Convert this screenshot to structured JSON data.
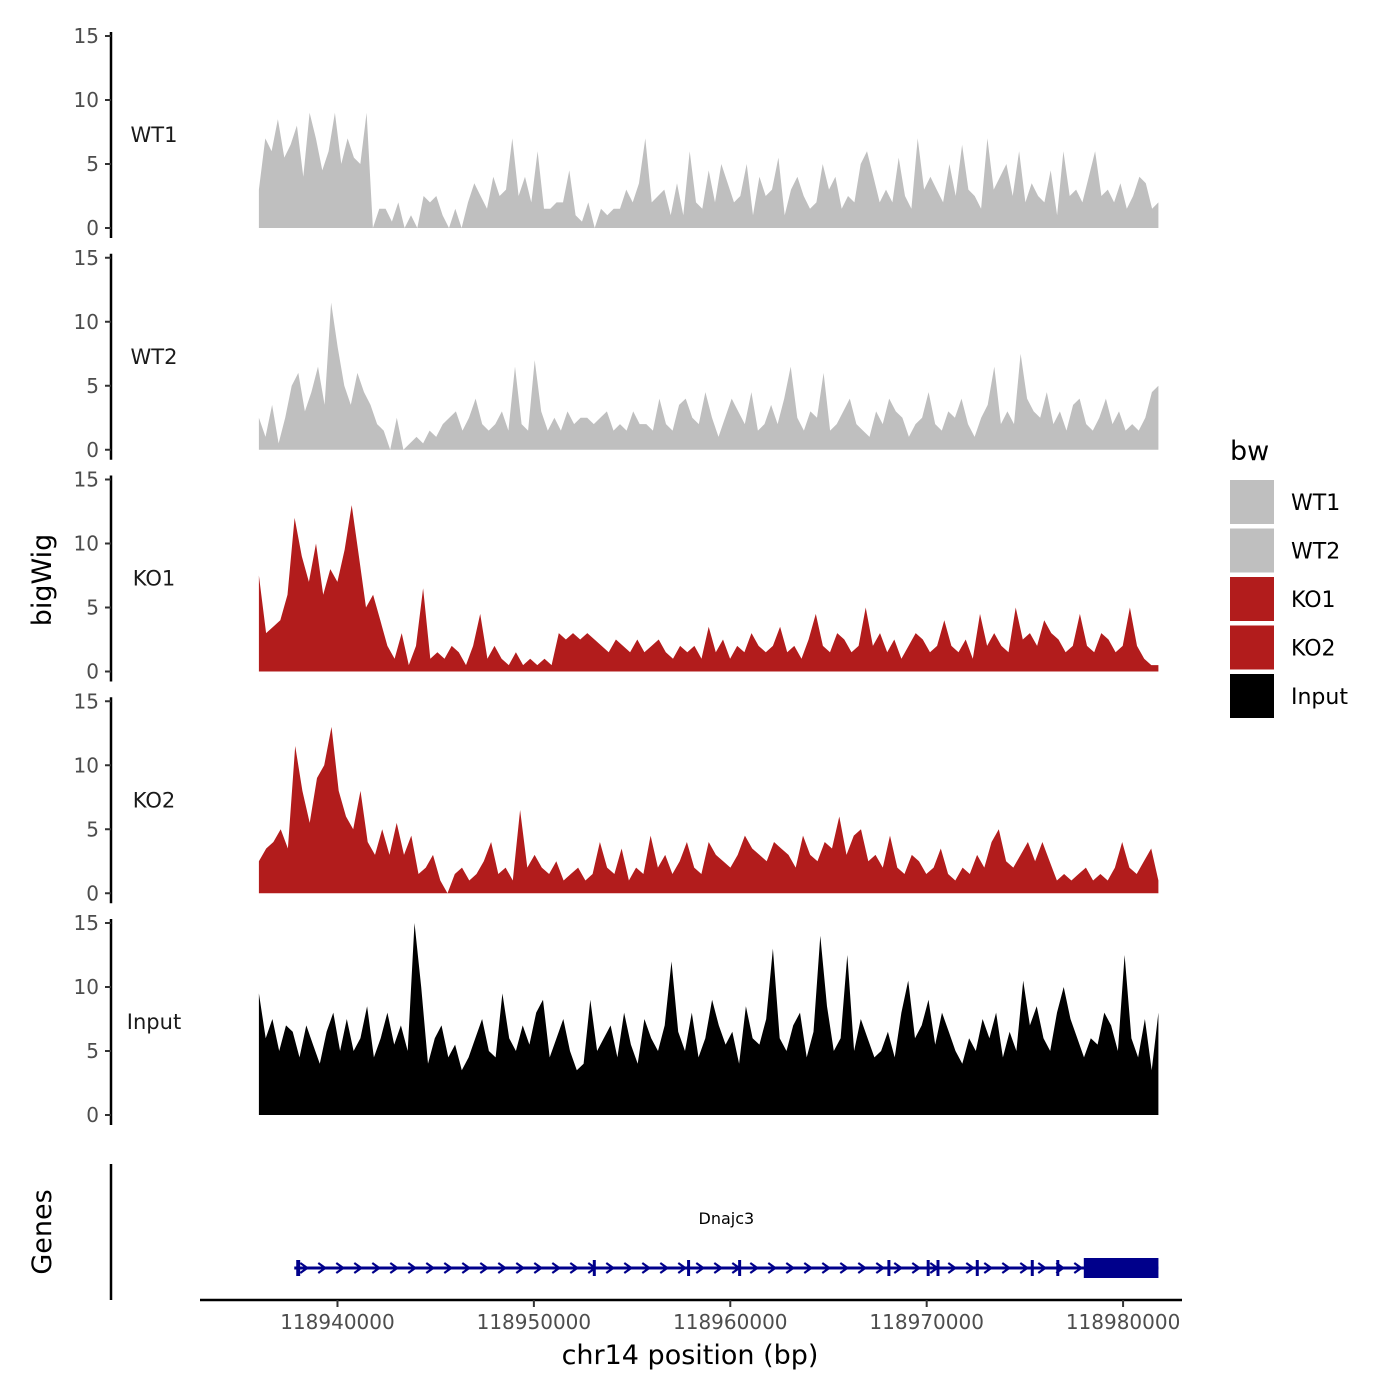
{
  "chart_data": {
    "type": "area",
    "y_axis_title": "bigWig",
    "gene_axis_title": "Genes",
    "xlabel": "chr14 position (bp)",
    "x_ticks": [
      118940000,
      118950000,
      118960000,
      118970000,
      118980000
    ],
    "x_tick_labels": [
      "118940000",
      "118950000",
      "118960000",
      "118970000",
      "118980000"
    ],
    "xlim": [
      118933000,
      118983000
    ],
    "data_range": [
      118936000,
      118981800
    ],
    "ylim": [
      0,
      15
    ],
    "y_ticks": [
      0,
      5,
      10,
      15
    ],
    "y_tick_labels": [
      "0",
      "5",
      "10",
      "15"
    ],
    "legend": {
      "title": "bw",
      "position": "right",
      "entries": [
        {
          "label": "WT1",
          "color": "#bfbfbf"
        },
        {
          "label": "WT2",
          "color": "#bfbfbf"
        },
        {
          "label": "KO1",
          "color": "#b21c1c"
        },
        {
          "label": "KO2",
          "color": "#b21c1c"
        },
        {
          "label": "Input",
          "color": "#000000"
        }
      ]
    },
    "series": [
      {
        "name": "WT1",
        "color": "#bfbfbf",
        "values": [
          3.0,
          7.0,
          6.0,
          8.5,
          5.5,
          6.5,
          8.0,
          4.0,
          9.0,
          7.0,
          4.5,
          6.0,
          9.0,
          5.0,
          7.0,
          5.5,
          5.0,
          9.0,
          0.0,
          1.5,
          1.5,
          0.5,
          2.0,
          0.0,
          1.0,
          0.0,
          2.5,
          2.0,
          2.5,
          1.0,
          0.0,
          1.5,
          0.0,
          2.0,
          3.5,
          2.5,
          1.5,
          4.0,
          2.5,
          3.0,
          7.0,
          2.5,
          4.0,
          2.0,
          6.0,
          1.5,
          1.5,
          2.0,
          2.0,
          4.5,
          1.0,
          0.5,
          2.0,
          0.0,
          1.5,
          1.0,
          1.5,
          1.5,
          3.0,
          2.0,
          3.5,
          7.0,
          2.0,
          2.5,
          3.0,
          1.0,
          3.5,
          1.0,
          6.0,
          2.0,
          1.5,
          4.5,
          2.0,
          5.0,
          3.5,
          2.0,
          2.5,
          5.0,
          1.0,
          4.0,
          2.5,
          3.0,
          5.5,
          1.0,
          3.0,
          4.0,
          2.5,
          1.5,
          2.0,
          5.0,
          3.0,
          4.0,
          1.5,
          2.5,
          2.0,
          5.0,
          6.0,
          4.0,
          2.0,
          3.0,
          2.0,
          5.5,
          2.5,
          1.5,
          7.0,
          3.0,
          4.0,
          3.0,
          2.0,
          5.0,
          2.5,
          6.5,
          3.0,
          2.5,
          1.5,
          7.0,
          3.0,
          4.0,
          5.0,
          2.5,
          6.0,
          2.0,
          3.5,
          2.5,
          2.0,
          4.5,
          1.0,
          6.0,
          2.5,
          3.0,
          2.0,
          4.0,
          6.0,
          2.5,
          3.0,
          2.0,
          3.5,
          1.5,
          2.5,
          4.0,
          3.5,
          1.5,
          2.0
        ]
      },
      {
        "name": "WT2",
        "color": "#bfbfbf",
        "values": [
          2.5,
          1.0,
          3.5,
          0.5,
          2.5,
          5.0,
          6.0,
          3.0,
          4.5,
          6.5,
          3.5,
          11.5,
          8.0,
          5.0,
          3.5,
          6.0,
          4.5,
          3.5,
          2.0,
          1.5,
          0.0,
          2.5,
          0.0,
          0.5,
          1.0,
          0.5,
          1.5,
          1.0,
          2.0,
          2.5,
          3.0,
          1.5,
          2.5,
          4.0,
          2.0,
          1.5,
          2.0,
          3.0,
          1.5,
          6.5,
          2.0,
          1.5,
          7.0,
          3.0,
          1.5,
          2.5,
          1.5,
          3.0,
          2.0,
          2.5,
          2.5,
          2.0,
          2.5,
          3.0,
          1.5,
          2.0,
          1.5,
          3.0,
          2.0,
          2.0,
          1.5,
          4.0,
          2.0,
          1.5,
          3.5,
          4.0,
          2.5,
          2.0,
          4.5,
          2.5,
          1.0,
          2.5,
          4.0,
          3.0,
          2.0,
          4.5,
          1.5,
          2.0,
          3.5,
          2.0,
          4.0,
          6.5,
          2.5,
          1.5,
          3.0,
          2.5,
          6.0,
          1.5,
          2.0,
          3.0,
          4.0,
          2.0,
          1.5,
          1.0,
          3.0,
          2.0,
          4.0,
          3.0,
          2.5,
          1.0,
          2.0,
          2.5,
          4.5,
          2.0,
          1.5,
          3.0,
          2.5,
          4.0,
          2.0,
          1.0,
          2.5,
          3.5,
          6.5,
          2.0,
          3.0,
          2.0,
          7.5,
          4.0,
          3.0,
          2.5,
          4.5,
          2.0,
          3.0,
          1.5,
          3.5,
          4.0,
          2.0,
          1.5,
          2.5,
          4.0,
          2.0,
          3.0,
          1.5,
          2.0,
          1.5,
          2.5,
          4.5,
          5.0
        ]
      },
      {
        "name": "KO1",
        "color": "#b21c1c",
        "values": [
          7.5,
          3.0,
          3.5,
          4.0,
          6.0,
          12.0,
          9.0,
          7.0,
          10.0,
          6.0,
          8.0,
          7.0,
          9.5,
          13.0,
          9.0,
          5.0,
          6.0,
          4.0,
          2.0,
          1.0,
          3.0,
          0.5,
          2.0,
          6.5,
          1.0,
          1.5,
          1.0,
          2.0,
          1.5,
          0.5,
          2.0,
          4.5,
          1.0,
          2.0,
          1.0,
          0.5,
          1.5,
          0.5,
          1.0,
          0.5,
          1.0,
          0.5,
          3.0,
          2.5,
          3.0,
          2.5,
          3.0,
          2.5,
          2.0,
          1.5,
          2.5,
          2.0,
          1.5,
          2.5,
          1.5,
          2.0,
          2.5,
          1.5,
          1.0,
          2.0,
          1.5,
          2.0,
          1.0,
          3.5,
          1.5,
          2.5,
          1.0,
          2.0,
          1.5,
          3.0,
          2.0,
          1.5,
          2.0,
          3.5,
          1.5,
          2.0,
          1.0,
          2.5,
          4.5,
          2.0,
          1.5,
          3.0,
          2.5,
          1.5,
          2.0,
          5.0,
          2.0,
          3.0,
          1.5,
          2.5,
          1.0,
          2.0,
          3.0,
          2.5,
          1.5,
          2.0,
          4.0,
          2.0,
          1.5,
          2.5,
          1.0,
          4.5,
          2.0,
          3.0,
          2.0,
          1.5,
          5.0,
          2.5,
          3.0,
          2.0,
          4.0,
          3.0,
          2.5,
          1.5,
          2.0,
          4.5,
          2.0,
          1.5,
          3.0,
          2.5,
          1.5,
          2.0,
          5.0,
          2.0,
          1.0,
          0.5,
          0.5
        ]
      },
      {
        "name": "KO2",
        "color": "#b21c1c",
        "values": [
          2.5,
          3.5,
          4.0,
          5.0,
          3.5,
          11.5,
          8.0,
          5.5,
          9.0,
          10.0,
          13.0,
          8.0,
          6.0,
          5.0,
          8.0,
          4.0,
          3.0,
          5.0,
          3.0,
          5.5,
          3.0,
          4.5,
          1.5,
          2.0,
          3.0,
          1.0,
          0.0,
          1.5,
          2.0,
          1.0,
          1.5,
          2.5,
          4.0,
          1.5,
          2.0,
          1.0,
          6.5,
          2.0,
          3.0,
          2.0,
          1.5,
          2.5,
          1.0,
          1.5,
          2.0,
          1.0,
          1.5,
          4.0,
          2.0,
          1.5,
          3.5,
          1.0,
          2.0,
          1.5,
          4.5,
          2.0,
          3.0,
          1.5,
          2.5,
          4.0,
          2.0,
          1.5,
          4.0,
          3.0,
          2.5,
          2.0,
          3.0,
          4.5,
          3.5,
          3.0,
          2.5,
          4.0,
          3.5,
          3.0,
          2.0,
          4.5,
          3.0,
          2.5,
          4.0,
          3.5,
          6.0,
          3.0,
          4.5,
          5.0,
          2.5,
          3.0,
          2.0,
          4.5,
          2.0,
          1.5,
          3.0,
          2.5,
          1.5,
          2.0,
          3.5,
          1.5,
          1.0,
          2.0,
          1.5,
          3.0,
          2.0,
          4.0,
          5.0,
          2.5,
          2.0,
          3.0,
          4.0,
          2.5,
          4.0,
          2.5,
          1.0,
          1.5,
          1.0,
          1.5,
          2.0,
          1.0,
          1.5,
          1.0,
          2.0,
          4.0,
          2.0,
          1.5,
          2.5,
          3.5,
          1.0
        ]
      },
      {
        "name": "Input",
        "color": "#000000",
        "values": [
          9.5,
          6.0,
          7.5,
          5.0,
          7.0,
          6.5,
          4.5,
          7.0,
          5.5,
          4.0,
          6.5,
          8.0,
          5.0,
          7.5,
          5.0,
          6.0,
          8.5,
          4.5,
          6.0,
          8.0,
          5.5,
          7.0,
          5.0,
          15.0,
          10.0,
          4.0,
          6.0,
          7.0,
          4.5,
          5.5,
          3.5,
          4.5,
          6.0,
          7.5,
          5.0,
          4.5,
          9.5,
          6.0,
          5.0,
          7.0,
          5.5,
          8.0,
          9.0,
          4.5,
          6.0,
          7.5,
          5.0,
          3.5,
          4.0,
          9.0,
          5.0,
          6.0,
          7.0,
          4.5,
          8.0,
          5.5,
          4.0,
          7.5,
          6.0,
          5.0,
          7.0,
          12.0,
          6.5,
          5.0,
          8.0,
          4.5,
          6.0,
          9.0,
          7.0,
          5.5,
          6.5,
          4.0,
          8.5,
          6.0,
          5.5,
          7.5,
          13.0,
          6.0,
          5.0,
          7.0,
          8.0,
          4.5,
          6.5,
          14.0,
          8.5,
          5.0,
          6.0,
          12.5,
          5.0,
          7.5,
          6.0,
          4.5,
          5.0,
          6.5,
          4.5,
          8.0,
          10.5,
          6.0,
          7.0,
          9.0,
          5.5,
          8.0,
          6.5,
          5.0,
          4.0,
          6.0,
          5.0,
          7.5,
          6.0,
          8.0,
          4.5,
          6.5,
          5.0,
          10.5,
          7.0,
          8.5,
          6.0,
          5.0,
          8.0,
          10.0,
          7.5,
          6.0,
          4.5,
          6.0,
          5.5,
          8.0,
          7.0,
          5.0,
          12.5,
          6.0,
          4.5,
          7.5,
          3.5,
          8.0
        ]
      }
    ],
    "genes": [
      {
        "name": "Dnajc3",
        "color": "#00008b",
        "strand": "+",
        "start": 118937800,
        "end": 118981800,
        "exons": [
          [
            118937900,
            118938100
          ],
          [
            118953000,
            118953100
          ],
          [
            118957800,
            118957900
          ],
          [
            118960400,
            118960500
          ],
          [
            118968000,
            118968100
          ],
          [
            118970000,
            118970100
          ],
          [
            118970500,
            118970600
          ],
          [
            118972500,
            118972600
          ],
          [
            118975300,
            118975400
          ],
          [
            118976600,
            118976700
          ],
          [
            118978000,
            118981800
          ]
        ]
      }
    ]
  }
}
